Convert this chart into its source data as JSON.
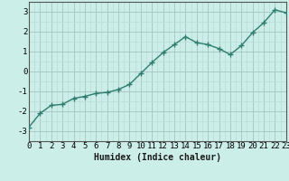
{
  "x": [
    0,
    1,
    2,
    3,
    4,
    5,
    6,
    7,
    8,
    9,
    10,
    11,
    12,
    13,
    14,
    15,
    16,
    17,
    18,
    19,
    20,
    21,
    22,
    23
  ],
  "y": [
    -2.8,
    -2.1,
    -1.7,
    -1.65,
    -1.35,
    -1.25,
    -1.1,
    -1.05,
    -0.9,
    -0.65,
    -0.1,
    0.45,
    0.95,
    1.35,
    1.75,
    1.45,
    1.35,
    1.15,
    0.85,
    1.3,
    1.95,
    2.45,
    3.1,
    2.95
  ],
  "line_color": "#2e7d6e",
  "marker": "+",
  "markersize": 4,
  "bg_color": "#cceee8",
  "grid_color_major": "#aac8c4",
  "grid_color_minor": "#bbdad6",
  "xlabel": "Humidex (Indice chaleur)",
  "xlim": [
    0,
    23
  ],
  "ylim": [
    -3.5,
    3.5
  ],
  "yticks": [
    -3,
    -2,
    -1,
    0,
    1,
    2,
    3
  ],
  "xticks": [
    0,
    1,
    2,
    3,
    4,
    5,
    6,
    7,
    8,
    9,
    10,
    11,
    12,
    13,
    14,
    15,
    16,
    17,
    18,
    19,
    20,
    21,
    22,
    23
  ],
  "xlabel_fontsize": 7,
  "tick_fontsize": 6.5,
  "linewidth": 1.0
}
